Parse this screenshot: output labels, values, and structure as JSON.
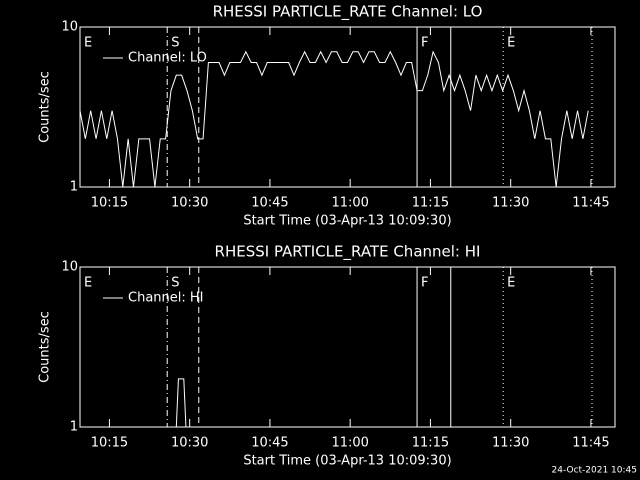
{
  "chart_data": [
    {
      "type": "line",
      "title": "RHESSI PARTICLE_RATE Channel: LO",
      "xlabel": "Start Time (03-Apr-13 10:09:30)",
      "ylabel": "Counts/sec",
      "log_y": true,
      "legend": "upper left",
      "x": [
        0,
        1,
        2,
        3,
        4,
        5,
        6,
        7,
        8,
        9,
        10,
        11,
        12,
        13,
        14,
        15,
        16,
        17,
        18,
        19,
        20,
        21,
        22,
        23,
        24,
        25,
        26,
        27,
        28,
        29,
        30,
        31,
        32,
        33,
        34,
        35,
        36,
        37,
        38,
        39,
        40,
        41,
        42,
        43,
        44,
        45,
        46,
        47,
        48,
        49,
        50,
        51,
        52,
        53,
        54,
        55,
        56,
        57,
        58,
        59,
        60,
        61,
        62,
        63,
        64,
        65,
        66,
        67,
        68,
        69,
        70,
        71,
        72,
        73,
        74,
        75,
        76,
        77,
        78,
        79,
        80,
        81,
        82,
        83,
        84,
        85,
        86,
        87,
        88,
        89,
        90,
        91,
        92,
        93,
        94,
        95
      ],
      "series": [
        {
          "name": "Channel: LO",
          "color": "#ffffff",
          "values": [
            3,
            2,
            3,
            2,
            3,
            2,
            3,
            2,
            1,
            2,
            1,
            2,
            2,
            2,
            1,
            2,
            2,
            4,
            5,
            5,
            4,
            3,
            2,
            2,
            6,
            6,
            6,
            5,
            6,
            6,
            6,
            7,
            6,
            6,
            5,
            6,
            6,
            6,
            6,
            6,
            5,
            6,
            7,
            6,
            6,
            7,
            6,
            7,
            7,
            6,
            6,
            7,
            7,
            6,
            7,
            7,
            6,
            6,
            7,
            6,
            5,
            6,
            6,
            4,
            4,
            5,
            7,
            6,
            4,
            5,
            4,
            5,
            4,
            3,
            5,
            4,
            5,
            4,
            5,
            4,
            5,
            4,
            3,
            4,
            3,
            2,
            3,
            2,
            2,
            1,
            2,
            3,
            2,
            3,
            2,
            3
          ]
        }
      ],
      "xlim": [
        0,
        100
      ],
      "xticks": [
        {
          "value": 5.5,
          "label": "10:15"
        },
        {
          "value": 20.5,
          "label": "10:30"
        },
        {
          "value": 35.5,
          "label": "10:45"
        },
        {
          "value": 50.5,
          "label": "11:00"
        },
        {
          "value": 65.5,
          "label": "11:15"
        },
        {
          "value": 80.5,
          "label": "11:30"
        },
        {
          "value": 95.5,
          "label": "11:45"
        }
      ],
      "ylim": [
        1,
        10
      ],
      "yticks": [
        1,
        10
      ],
      "markers": [
        {
          "x": 0,
          "style": "solid",
          "label": "E"
        },
        {
          "x": 16.3,
          "style": "dashdot",
          "label": "S"
        },
        {
          "x": 22.2,
          "style": "dashed"
        },
        {
          "x": 63,
          "style": "solid",
          "label": "F"
        },
        {
          "x": 69.3,
          "style": "solid"
        },
        {
          "x": 79.1,
          "style": "dotted",
          "label": "E"
        },
        {
          "x": 95.7,
          "style": "dotted"
        }
      ]
    },
    {
      "type": "line",
      "title": "RHESSI PARTICLE_RATE Channel: HI",
      "xlabel": "Start Time (03-Apr-13 10:09:30)",
      "ylabel": "Counts/sec",
      "log_y": true,
      "legend": "upper left",
      "x": [
        18.0,
        18.4,
        19.4,
        19.8
      ],
      "series": [
        {
          "name": "Channel: HI",
          "color": "#ffffff",
          "values": [
            1,
            2,
            2,
            1
          ]
        }
      ],
      "xlim": [
        0,
        100
      ],
      "xticks": [
        {
          "value": 5.5,
          "label": "10:15"
        },
        {
          "value": 20.5,
          "label": "10:30"
        },
        {
          "value": 35.5,
          "label": "10:45"
        },
        {
          "value": 50.5,
          "label": "11:00"
        },
        {
          "value": 65.5,
          "label": "11:15"
        },
        {
          "value": 80.5,
          "label": "11:30"
        },
        {
          "value": 95.5,
          "label": "11:45"
        }
      ],
      "ylim": [
        1,
        10
      ],
      "yticks": [
        1,
        10
      ],
      "markers": [
        {
          "x": 0,
          "style": "solid",
          "label": "E"
        },
        {
          "x": 16.3,
          "style": "dashdot",
          "label": "S"
        },
        {
          "x": 22.2,
          "style": "dashed"
        },
        {
          "x": 63,
          "style": "solid",
          "label": "F"
        },
        {
          "x": 69.3,
          "style": "solid"
        },
        {
          "x": 79.1,
          "style": "dotted",
          "label": "E"
        },
        {
          "x": 95.7,
          "style": "dotted"
        }
      ]
    }
  ],
  "footer": "24-Oct-2021 10:45"
}
